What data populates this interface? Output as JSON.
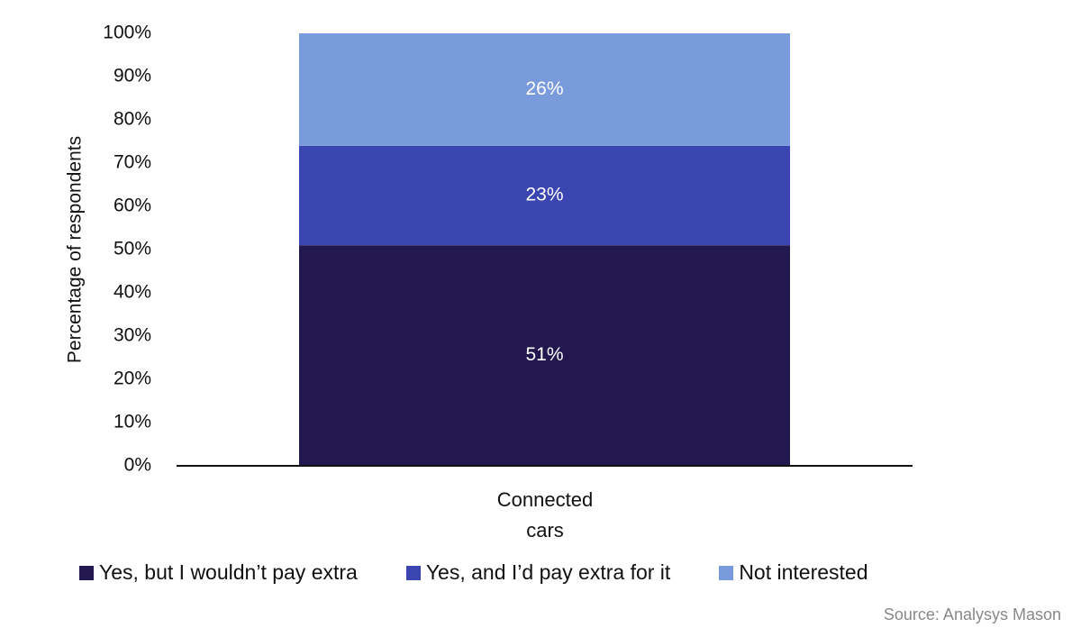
{
  "chart_data": {
    "type": "stacked-bar",
    "y_label": "Percentage of respondents",
    "categories": [
      "Connected cars"
    ],
    "series": [
      {
        "name": "Yes, but I wouldn’t pay extra",
        "color": "#22184f",
        "values": [
          51
        ],
        "value_labels": [
          "51%"
        ]
      },
      {
        "name": "Yes, and I’d pay extra for it",
        "color": "#3a45b2",
        "values": [
          23
        ],
        "value_labels": [
          "23%"
        ]
      },
      {
        "name": "Not interested",
        "color": "#7a9bdb",
        "values": [
          26
        ],
        "value_labels": [
          "26%"
        ]
      }
    ],
    "ylim": [
      0,
      100
    ],
    "yticks": [
      {
        "value": 0,
        "label": "0%"
      },
      {
        "value": 10,
        "label": "10%"
      },
      {
        "value": 20,
        "label": "20%"
      },
      {
        "value": 30,
        "label": "30%"
      },
      {
        "value": 40,
        "label": "40%"
      },
      {
        "value": 50,
        "label": "50%"
      },
      {
        "value": 60,
        "label": "60%"
      },
      {
        "value": 70,
        "label": "70%"
      },
      {
        "value": 80,
        "label": "80%"
      },
      {
        "value": 90,
        "label": "90%"
      },
      {
        "value": 100,
        "label": "100%"
      }
    ],
    "legend": "bottom",
    "source": "Source: Analysys Mason"
  }
}
